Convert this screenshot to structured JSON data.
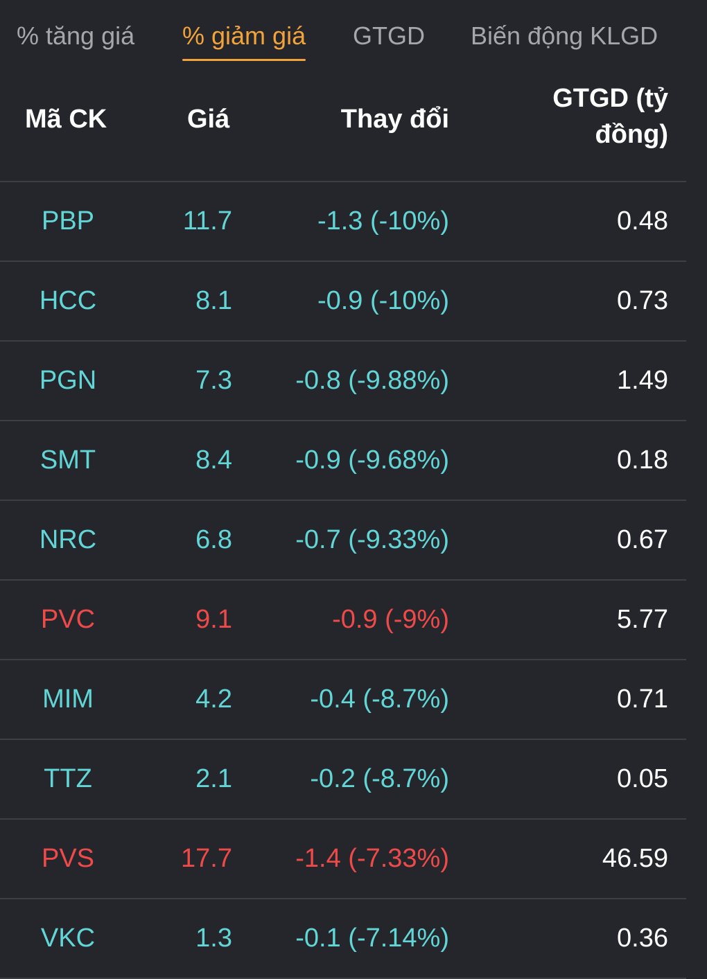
{
  "tabs": [
    {
      "label": "% tăng giá",
      "active": false
    },
    {
      "label": "% giảm giá",
      "active": true
    },
    {
      "label": "GTGD",
      "active": false
    },
    {
      "label": "Biến động KLGD",
      "active": false
    }
  ],
  "table": {
    "headers": {
      "code": "Mã CK",
      "price": "Giá",
      "change": "Thay đổi",
      "value": "GTGD (tỷ đồng)"
    },
    "colors": {
      "teal": "#62d6d6",
      "red": "#ef4a4a",
      "white": "#ffffff"
    },
    "rows": [
      {
        "code": "PBP",
        "price": "11.7",
        "change": "-1.3 (-10%)",
        "value": "0.48",
        "color": "#62d6d6"
      },
      {
        "code": "HCC",
        "price": "8.1",
        "change": "-0.9 (-10%)",
        "value": "0.73",
        "color": "#62d6d6"
      },
      {
        "code": "PGN",
        "price": "7.3",
        "change": "-0.8 (-9.88%)",
        "value": "1.49",
        "color": "#62d6d6"
      },
      {
        "code": "SMT",
        "price": "8.4",
        "change": "-0.9 (-9.68%)",
        "value": "0.18",
        "color": "#62d6d6"
      },
      {
        "code": "NRC",
        "price": "6.8",
        "change": "-0.7 (-9.33%)",
        "value": "0.67",
        "color": "#62d6d6"
      },
      {
        "code": "PVC",
        "price": "9.1",
        "change": "-0.9 (-9%)",
        "value": "5.77",
        "color": "#ef4a4a"
      },
      {
        "code": "MIM",
        "price": "4.2",
        "change": "-0.4 (-8.7%)",
        "value": "0.71",
        "color": "#62d6d6"
      },
      {
        "code": "TTZ",
        "price": "2.1",
        "change": "-0.2 (-8.7%)",
        "value": "0.05",
        "color": "#62d6d6"
      },
      {
        "code": "PVS",
        "price": "17.7",
        "change": "-1.4 (-7.33%)",
        "value": "46.59",
        "color": "#ef4a4a"
      },
      {
        "code": "VKC",
        "price": "1.3",
        "change": "-0.1 (-7.14%)",
        "value": "0.36",
        "color": "#62d6d6"
      }
    ]
  }
}
